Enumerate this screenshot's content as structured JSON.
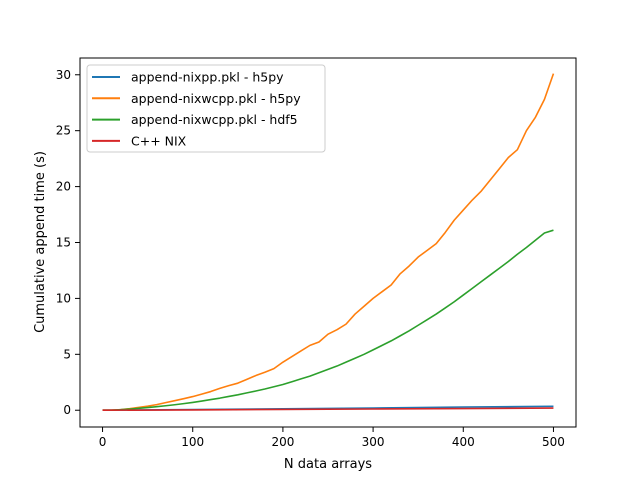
{
  "chart_data": {
    "type": "line",
    "xlabel": "N data arrays",
    "ylabel": "Cumulative append time (s)",
    "xlim": [
      -25,
      525
    ],
    "ylim": [
      -1.5,
      31.5
    ],
    "xticks": [
      0,
      100,
      200,
      300,
      400,
      500
    ],
    "yticks": [
      0,
      5,
      10,
      15,
      20,
      25,
      30
    ],
    "grid": false,
    "legend_position": "top-left",
    "series": [
      {
        "name": "append-nixpp.pkl - h5py",
        "color": "#1f77b4",
        "x": [
          0,
          100,
          200,
          300,
          400,
          500
        ],
        "y": [
          0,
          0.06,
          0.13,
          0.2,
          0.28,
          0.35
        ]
      },
      {
        "name": "append-nixwcpp.pkl - h5py",
        "color": "#ff7f0e",
        "x": [
          0,
          10,
          20,
          30,
          40,
          50,
          60,
          70,
          80,
          90,
          100,
          110,
          120,
          130,
          140,
          150,
          160,
          170,
          180,
          190,
          200,
          210,
          220,
          230,
          240,
          250,
          260,
          270,
          280,
          290,
          300,
          310,
          320,
          330,
          340,
          350,
          360,
          370,
          380,
          390,
          400,
          410,
          420,
          430,
          440,
          450,
          460,
          470,
          480,
          490,
          500
        ],
        "y": [
          0,
          0.01,
          0.05,
          0.14,
          0.25,
          0.36,
          0.5,
          0.68,
          0.85,
          1.03,
          1.22,
          1.44,
          1.67,
          1.95,
          2.2,
          2.42,
          2.76,
          3.1,
          3.4,
          3.72,
          4.3,
          4.8,
          5.3,
          5.8,
          6.1,
          6.8,
          7.2,
          7.7,
          8.6,
          9.3,
          10.0,
          10.6,
          11.2,
          12.2,
          12.9,
          13.7,
          14.3,
          14.9,
          15.9,
          17.0,
          17.9,
          18.8,
          19.6,
          20.6,
          21.6,
          22.6,
          23.3,
          25.0,
          26.2,
          27.8,
          30.1
        ]
      },
      {
        "name": "append-nixwcpp.pkl - hdf5",
        "color": "#2ca02c",
        "x": [
          0,
          10,
          20,
          30,
          40,
          50,
          60,
          70,
          80,
          90,
          100,
          110,
          120,
          130,
          140,
          150,
          160,
          170,
          180,
          190,
          200,
          210,
          220,
          230,
          240,
          250,
          260,
          270,
          280,
          290,
          300,
          310,
          320,
          330,
          340,
          350,
          360,
          370,
          380,
          390,
          400,
          410,
          420,
          430,
          440,
          450,
          460,
          470,
          480,
          490,
          500
        ],
        "y": [
          0,
          0.01,
          0.05,
          0.1,
          0.17,
          0.24,
          0.32,
          0.4,
          0.49,
          0.59,
          0.7,
          0.82,
          0.95,
          1.08,
          1.23,
          1.38,
          1.55,
          1.72,
          1.9,
          2.1,
          2.3,
          2.55,
          2.8,
          3.05,
          3.35,
          3.65,
          3.95,
          4.3,
          4.65,
          5.0,
          5.4,
          5.8,
          6.2,
          6.65,
          7.1,
          7.6,
          8.1,
          8.6,
          9.15,
          9.7,
          10.3,
          10.9,
          11.5,
          12.1,
          12.7,
          13.3,
          13.95,
          14.55,
          15.2,
          15.85,
          16.1
        ]
      },
      {
        "name": "C++ NIX",
        "color": "#d62728",
        "x": [
          0,
          100,
          200,
          300,
          400,
          500
        ],
        "y": [
          0,
          0.03,
          0.07,
          0.11,
          0.15,
          0.19
        ]
      }
    ]
  }
}
